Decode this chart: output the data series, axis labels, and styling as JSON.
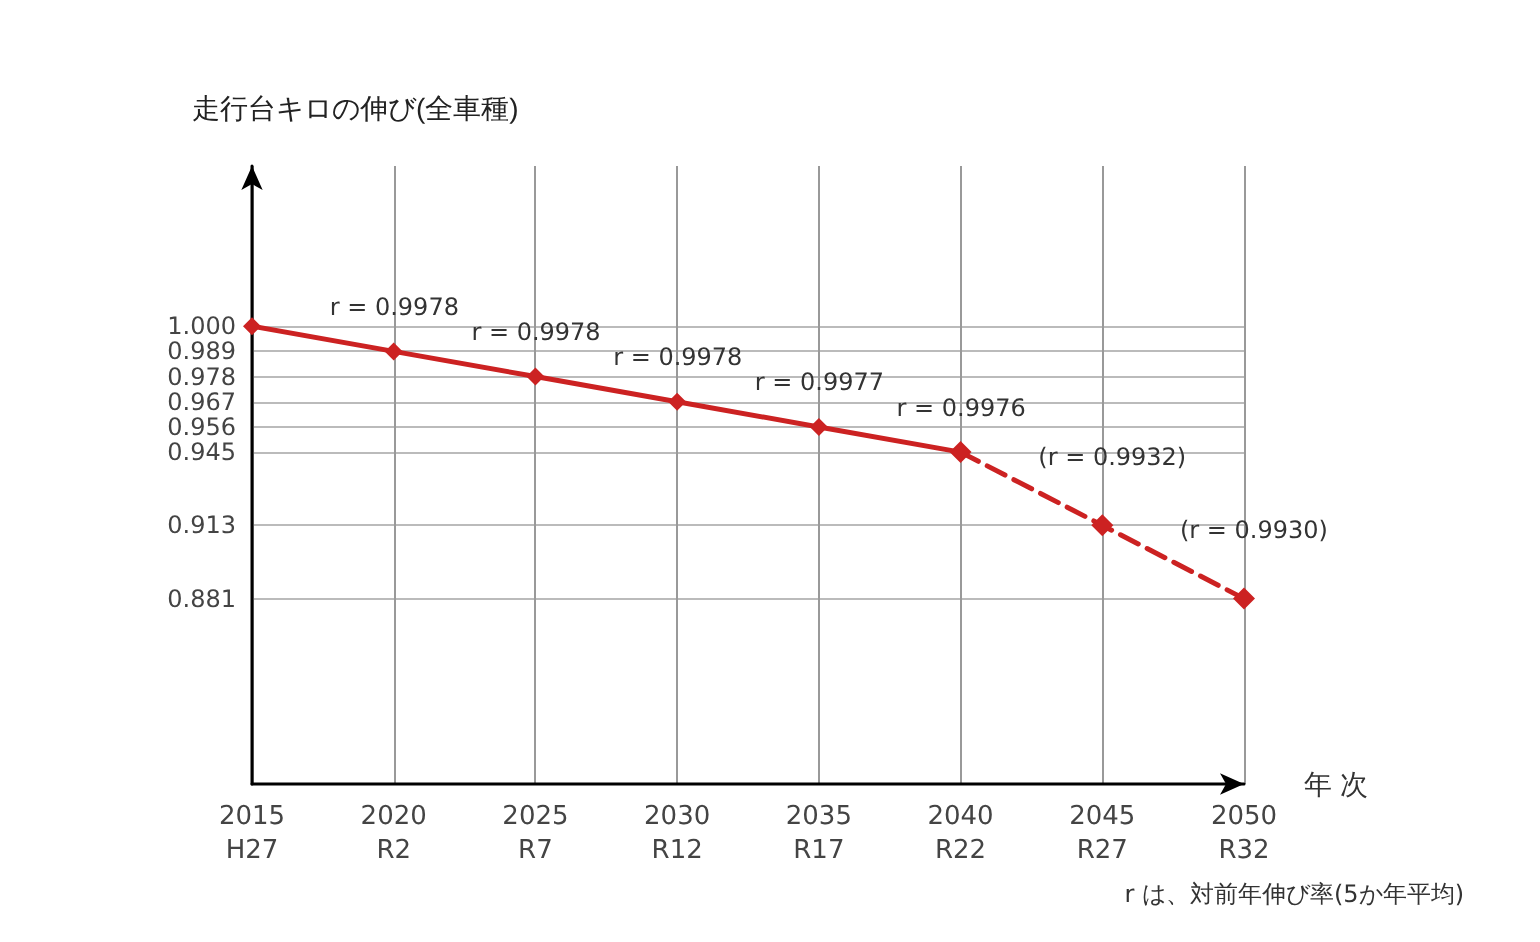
{
  "chart_data": {
    "type": "line",
    "ylabel": "走行台キロの伸び(全車種)",
    "xlabel": "年 次",
    "categories": [
      "2015\nH27",
      "2020\nR2",
      "2025\nR7",
      "2030\nR12",
      "2035\nR17",
      "2040\nR22",
      "2045\nR27",
      "2050\nR32"
    ],
    "series": [
      {
        "color": "#cc2222",
        "line_style": "solid",
        "values": [
          1.0,
          0.989,
          0.978,
          0.967,
          0.956,
          0.945,
          null,
          null
        ]
      },
      {
        "color": "#cc2222",
        "line_style": "dashed",
        "values": [
          null,
          null,
          null,
          null,
          null,
          0.945,
          0.913,
          0.881
        ]
      }
    ],
    "marker": "diamond",
    "ylim": [
      0.8,
      1.07
    ],
    "yticks": [
      {
        "value": 1.0,
        "label": "1.000"
      },
      0.989,
      0.978,
      0.967,
      0.956,
      0.945,
      0.913,
      0.881
    ],
    "grid": true,
    "annotations": [
      "r = 0.9978",
      "r = 0.9978",
      "r = 0.9978",
      "r = 0.9977",
      "r = 0.9976",
      "(r = 0.9932)",
      "(r = 0.9930)",
      "r は、対前年伸び率(5か年平均)"
    ]
  }
}
